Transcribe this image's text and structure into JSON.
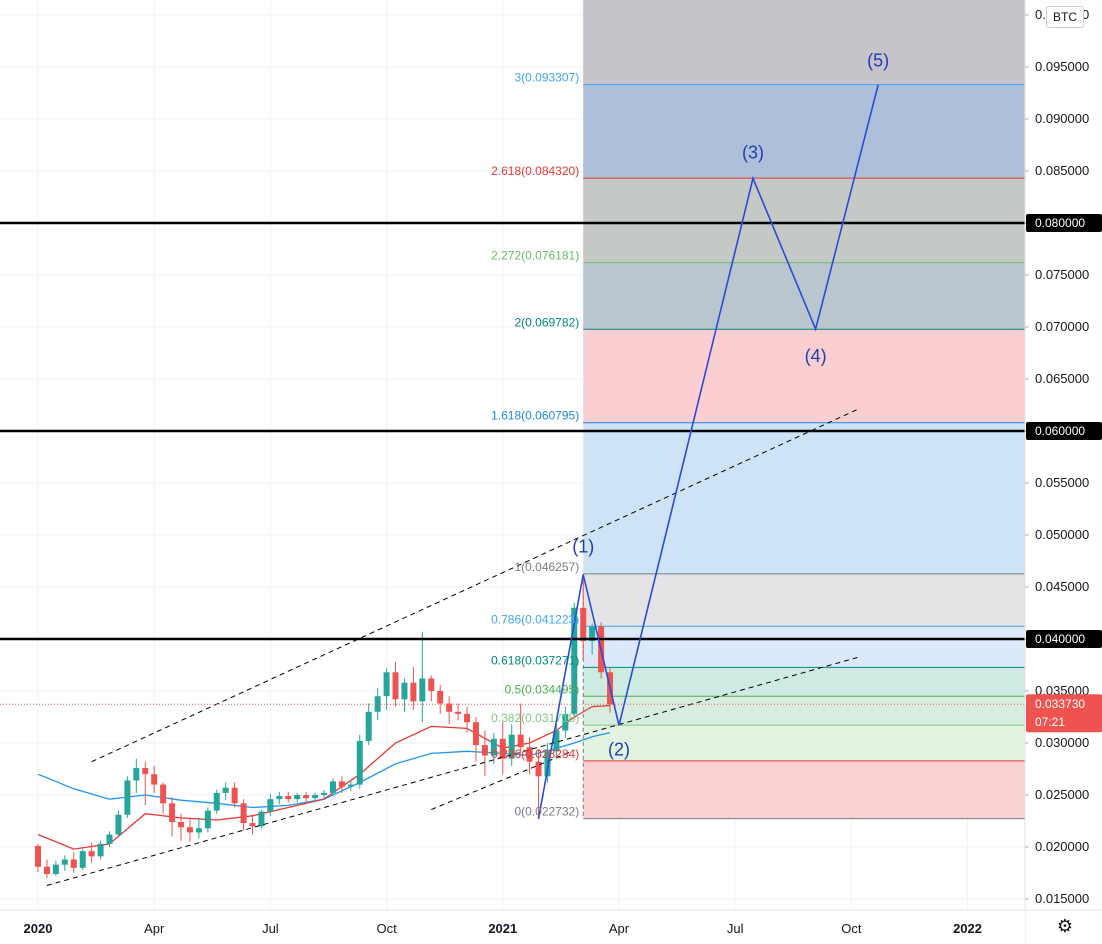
{
  "currency": "BTC",
  "settings_icon": "gear-icon",
  "colors": {
    "candle_up": "#26a69a",
    "candle_down": "#ef5350",
    "ma_fast": "#e53935",
    "ma_slow": "#2196f3",
    "wave": "#2a4bd7",
    "black_level": "#000000"
  },
  "last_price": "0.033730",
  "countdown": "07:21",
  "horizontal_levels": [
    "0.080000",
    "0.060000",
    "0.040000"
  ],
  "fib_levels": [
    {
      "label": "3(0.093307)",
      "value": 0.093307,
      "color": "#42a5f5"
    },
    {
      "label": "2.618(0.084320)",
      "value": 0.08432,
      "color": "#e53935"
    },
    {
      "label": "2.272(0.076181)",
      "value": 0.076181,
      "color": "#66bb6a"
    },
    {
      "label": "2(0.069782)",
      "value": 0.069782,
      "color": "#00897b"
    },
    {
      "label": "1.618(0.060795)",
      "value": 0.060795,
      "color": "#1e88e5"
    },
    {
      "label": "1(0.046257)",
      "value": 0.046257,
      "color": "#787b86"
    },
    {
      "label": "0.786(0.041223)",
      "value": 0.041223,
      "color": "#42a5f5"
    },
    {
      "label": "0.618(0.037271)",
      "value": 0.037271,
      "color": "#00897b"
    },
    {
      "label": "0.5(0.034495)",
      "value": 0.034495,
      "color": "#4caf50"
    },
    {
      "label": "0.382(0.031718)",
      "value": 0.031718,
      "color": "#81c784"
    },
    {
      "label": "0.236(0.028284)",
      "value": 0.028284,
      "color": "#e53935"
    },
    {
      "label": "0(0.022732)",
      "value": 0.022732,
      "color": "#787b86"
    }
  ],
  "wave_labels": [
    "(1)",
    "(2)",
    "(3)",
    "(4)",
    "(5)"
  ],
  "chart_data": {
    "type": "candlestick",
    "symbol_quote": "BTC",
    "ylim": [
      0.013,
      0.1
    ],
    "yticks": [
      "0.100000",
      "0.095000",
      "0.090000",
      "0.085000",
      "0.080000",
      "0.075000",
      "0.070000",
      "0.065000",
      "0.060000",
      "0.055000",
      "0.050000",
      "0.045000",
      "0.040000",
      "0.035000",
      "0.030000",
      "0.025000",
      "0.020000",
      "0.015000"
    ],
    "xticks": [
      {
        "label": "2020",
        "bold": true,
        "t": 0
      },
      {
        "label": "Apr",
        "bold": false,
        "t": 13
      },
      {
        "label": "Jul",
        "bold": false,
        "t": 26
      },
      {
        "label": "Oct",
        "bold": false,
        "t": 39
      },
      {
        "label": "2021",
        "bold": true,
        "t": 52
      },
      {
        "label": "Apr",
        "bold": false,
        "t": 65
      },
      {
        "label": "Jul",
        "bold": false,
        "t": 78
      },
      {
        "label": "Oct",
        "bold": false,
        "t": 91
      },
      {
        "label": "2022",
        "bold": true,
        "t": 104
      }
    ],
    "candles": [
      {
        "o": 0.0201,
        "h": 0.0203,
        "c": 0.0181,
        "l": 0.0176
      },
      {
        "o": 0.0181,
        "h": 0.0188,
        "c": 0.0174,
        "l": 0.017
      },
      {
        "o": 0.0174,
        "h": 0.0187,
        "c": 0.0183,
        "l": 0.0172
      },
      {
        "o": 0.0183,
        "h": 0.0192,
        "c": 0.0188,
        "l": 0.0177
      },
      {
        "o": 0.0188,
        "h": 0.0195,
        "c": 0.018,
        "l": 0.0175
      },
      {
        "o": 0.018,
        "h": 0.0198,
        "c": 0.0196,
        "l": 0.0178
      },
      {
        "o": 0.0196,
        "h": 0.0204,
        "c": 0.0191,
        "l": 0.0185
      },
      {
        "o": 0.0191,
        "h": 0.0206,
        "c": 0.0203,
        "l": 0.0188
      },
      {
        "o": 0.0203,
        "h": 0.0215,
        "c": 0.0212,
        "l": 0.02
      },
      {
        "o": 0.0212,
        "h": 0.0235,
        "c": 0.0231,
        "l": 0.021
      },
      {
        "o": 0.0231,
        "h": 0.0268,
        "c": 0.0264,
        "l": 0.0228
      },
      {
        "o": 0.0264,
        "h": 0.0285,
        "c": 0.0276,
        "l": 0.0252
      },
      {
        "o": 0.0276,
        "h": 0.0282,
        "c": 0.027,
        "l": 0.024
      },
      {
        "o": 0.027,
        "h": 0.0278,
        "c": 0.026,
        "l": 0.0252
      },
      {
        "o": 0.026,
        "h": 0.0262,
        "c": 0.0242,
        "l": 0.0232
      },
      {
        "o": 0.0242,
        "h": 0.0248,
        "c": 0.0224,
        "l": 0.021
      },
      {
        "o": 0.0224,
        "h": 0.0232,
        "c": 0.0219,
        "l": 0.0206
      },
      {
        "o": 0.0219,
        "h": 0.0227,
        "c": 0.0214,
        "l": 0.0205
      },
      {
        "o": 0.0214,
        "h": 0.0228,
        "c": 0.0218,
        "l": 0.0208
      },
      {
        "o": 0.0218,
        "h": 0.0238,
        "c": 0.0235,
        "l": 0.0214
      },
      {
        "o": 0.0235,
        "h": 0.0255,
        "c": 0.0252,
        "l": 0.0232
      },
      {
        "o": 0.0252,
        "h": 0.0262,
        "c": 0.0257,
        "l": 0.0245
      },
      {
        "o": 0.0257,
        "h": 0.0262,
        "c": 0.0242,
        "l": 0.0238
      },
      {
        "o": 0.0242,
        "h": 0.0246,
        "c": 0.0223,
        "l": 0.0216
      },
      {
        "o": 0.0223,
        "h": 0.023,
        "c": 0.022,
        "l": 0.0212
      },
      {
        "o": 0.022,
        "h": 0.0236,
        "c": 0.0234,
        "l": 0.0218
      },
      {
        "o": 0.0234,
        "h": 0.0251,
        "c": 0.0246,
        "l": 0.023
      },
      {
        "o": 0.0246,
        "h": 0.0253,
        "c": 0.0249,
        "l": 0.0241
      },
      {
        "o": 0.0249,
        "h": 0.0253,
        "c": 0.0246,
        "l": 0.0243
      },
      {
        "o": 0.0246,
        "h": 0.0252,
        "c": 0.025,
        "l": 0.0243
      },
      {
        "o": 0.025,
        "h": 0.0253,
        "c": 0.0247,
        "l": 0.0243
      },
      {
        "o": 0.0247,
        "h": 0.0252,
        "c": 0.025,
        "l": 0.0244
      },
      {
        "o": 0.025,
        "h": 0.0255,
        "c": 0.0252,
        "l": 0.0246
      },
      {
        "o": 0.0252,
        "h": 0.0266,
        "c": 0.0263,
        "l": 0.0249
      },
      {
        "o": 0.0263,
        "h": 0.0268,
        "c": 0.0258,
        "l": 0.0252
      },
      {
        "o": 0.0258,
        "h": 0.0264,
        "c": 0.026,
        "l": 0.0254
      },
      {
        "o": 0.026,
        "h": 0.0308,
        "c": 0.0302,
        "l": 0.0256
      },
      {
        "o": 0.0302,
        "h": 0.0338,
        "c": 0.033,
        "l": 0.0298
      },
      {
        "o": 0.033,
        "h": 0.0353,
        "c": 0.0345,
        "l": 0.0322
      },
      {
        "o": 0.0345,
        "h": 0.0372,
        "c": 0.0368,
        "l": 0.0332
      },
      {
        "o": 0.0368,
        "h": 0.0378,
        "c": 0.0342,
        "l": 0.0335
      },
      {
        "o": 0.0342,
        "h": 0.0362,
        "c": 0.0358,
        "l": 0.033
      },
      {
        "o": 0.0358,
        "h": 0.0373,
        "c": 0.034,
        "l": 0.0332
      },
      {
        "o": 0.034,
        "h": 0.0407,
        "c": 0.0362,
        "l": 0.032
      },
      {
        "o": 0.0362,
        "h": 0.0365,
        "c": 0.035,
        "l": 0.034
      },
      {
        "o": 0.035,
        "h": 0.0356,
        "c": 0.0338,
        "l": 0.0328
      },
      {
        "o": 0.0338,
        "h": 0.0345,
        "c": 0.033,
        "l": 0.0318
      },
      {
        "o": 0.033,
        "h": 0.0338,
        "c": 0.0328,
        "l": 0.0322
      },
      {
        "o": 0.0328,
        "h": 0.0335,
        "c": 0.032,
        "l": 0.031
      },
      {
        "o": 0.032,
        "h": 0.0325,
        "c": 0.0298,
        "l": 0.0282
      },
      {
        "o": 0.0298,
        "h": 0.0312,
        "c": 0.0288,
        "l": 0.0268
      },
      {
        "o": 0.0288,
        "h": 0.031,
        "c": 0.0304,
        "l": 0.028
      },
      {
        "o": 0.0304,
        "h": 0.032,
        "c": 0.0285,
        "l": 0.027
      },
      {
        "o": 0.0285,
        "h": 0.0318,
        "c": 0.0308,
        "l": 0.0278
      },
      {
        "o": 0.0308,
        "h": 0.0338,
        "c": 0.0296,
        "l": 0.029
      },
      {
        "o": 0.0296,
        "h": 0.0306,
        "c": 0.0282,
        "l": 0.027
      },
      {
        "o": 0.0282,
        "h": 0.0294,
        "c": 0.0268,
        "l": 0.0227
      },
      {
        "o": 0.0268,
        "h": 0.03,
        "c": 0.0292,
        "l": 0.0262
      },
      {
        "o": 0.0292,
        "h": 0.0318,
        "c": 0.0312,
        "l": 0.0285
      },
      {
        "o": 0.0312,
        "h": 0.0335,
        "c": 0.0328,
        "l": 0.0305
      },
      {
        "o": 0.0328,
        "h": 0.0435,
        "c": 0.043,
        "l": 0.0325
      },
      {
        "o": 0.043,
        "h": 0.0462,
        "c": 0.0398,
        "l": 0.038
      },
      {
        "o": 0.0398,
        "h": 0.0415,
        "c": 0.0412,
        "l": 0.0385
      },
      {
        "o": 0.0412,
        "h": 0.0416,
        "c": 0.0368,
        "l": 0.0362
      },
      {
        "o": 0.0368,
        "h": 0.0372,
        "c": 0.0337,
        "l": 0.0329
      }
    ],
    "ma_fast": [
      [
        0,
        0.0212
      ],
      [
        4,
        0.0198
      ],
      [
        8,
        0.0203
      ],
      [
        12,
        0.0232
      ],
      [
        16,
        0.0228
      ],
      [
        20,
        0.0226
      ],
      [
        24,
        0.023
      ],
      [
        28,
        0.0238
      ],
      [
        32,
        0.0246
      ],
      [
        36,
        0.027
      ],
      [
        40,
        0.03
      ],
      [
        44,
        0.0316
      ],
      [
        48,
        0.0314
      ],
      [
        52,
        0.0295
      ],
      [
        55,
        0.03
      ],
      [
        58,
        0.0312
      ],
      [
        60,
        0.0325
      ],
      [
        62,
        0.0335
      ],
      [
        64,
        0.0336
      ]
    ],
    "ma_slow": [
      [
        0,
        0.027
      ],
      [
        4,
        0.0256
      ],
      [
        8,
        0.0246
      ],
      [
        12,
        0.025
      ],
      [
        16,
        0.0245
      ],
      [
        20,
        0.0242
      ],
      [
        24,
        0.0238
      ],
      [
        28,
        0.024
      ],
      [
        32,
        0.0246
      ],
      [
        36,
        0.0262
      ],
      [
        40,
        0.028
      ],
      [
        44,
        0.029
      ],
      [
        48,
        0.0292
      ],
      [
        52,
        0.029
      ],
      [
        55,
        0.0288
      ],
      [
        58,
        0.0295
      ],
      [
        60,
        0.03
      ],
      [
        62,
        0.0306
      ],
      [
        64,
        0.031
      ]
    ],
    "channel_lines": [
      {
        "p1": [
          6,
          0.0282
        ],
        "p2": [
          92,
          0.0622
        ]
      },
      {
        "p1": [
          1,
          0.0163
        ],
        "p2": [
          92,
          0.0383
        ]
      },
      {
        "p1": [
          44,
          0.0236
        ],
        "p2": [
          60,
          0.0293
        ]
      }
    ],
    "elliott_wave": [
      [
        56,
        0.0227
      ],
      [
        61,
        0.0462
      ],
      [
        65,
        0.0317
      ],
      [
        80,
        0.0843
      ],
      [
        87,
        0.0698
      ],
      [
        94,
        0.0933
      ]
    ],
    "fib_zone": {
      "t_start": 61,
      "t_end": 122
    }
  }
}
